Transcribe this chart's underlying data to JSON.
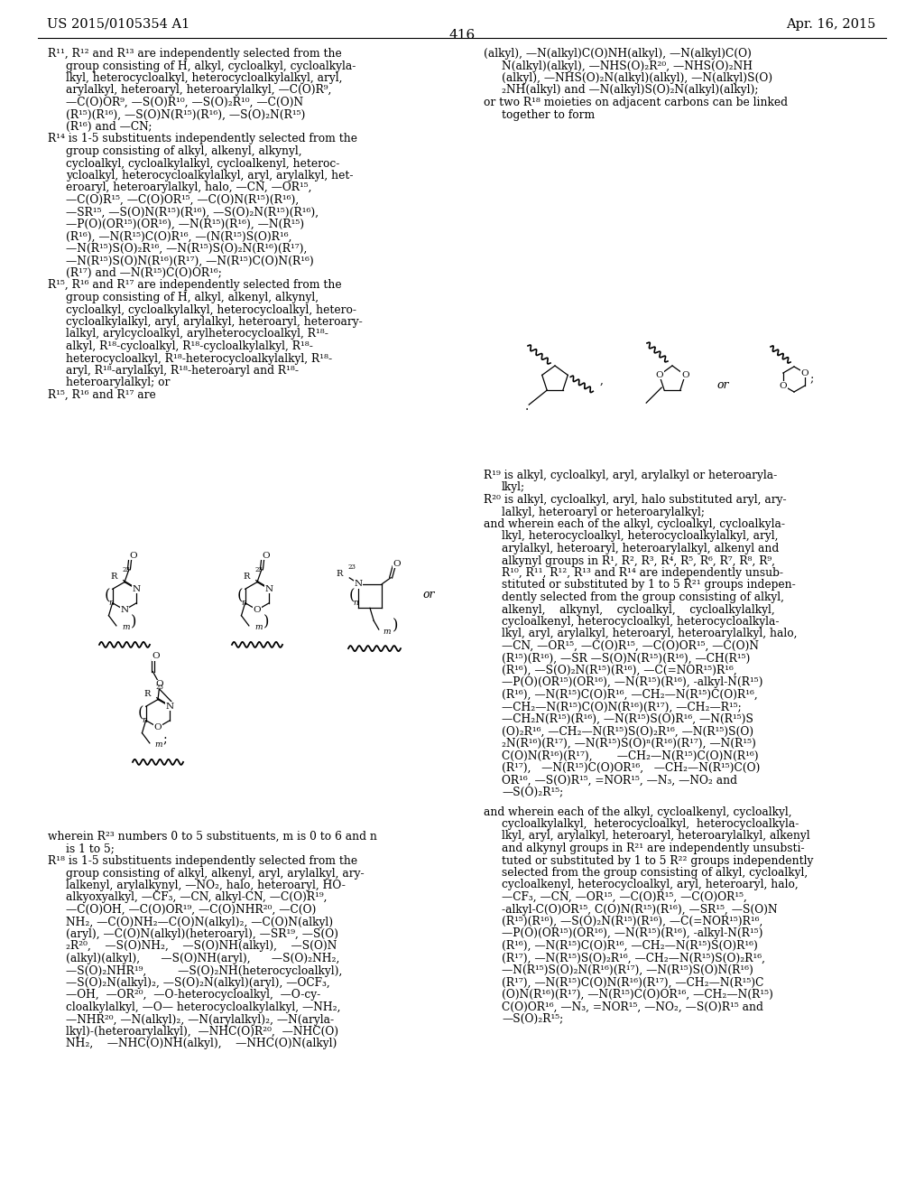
{
  "page_number": "416",
  "patent_number": "US 2015/0105354 A1",
  "patent_date": "Apr. 16, 2015",
  "bg": "#ffffff"
}
